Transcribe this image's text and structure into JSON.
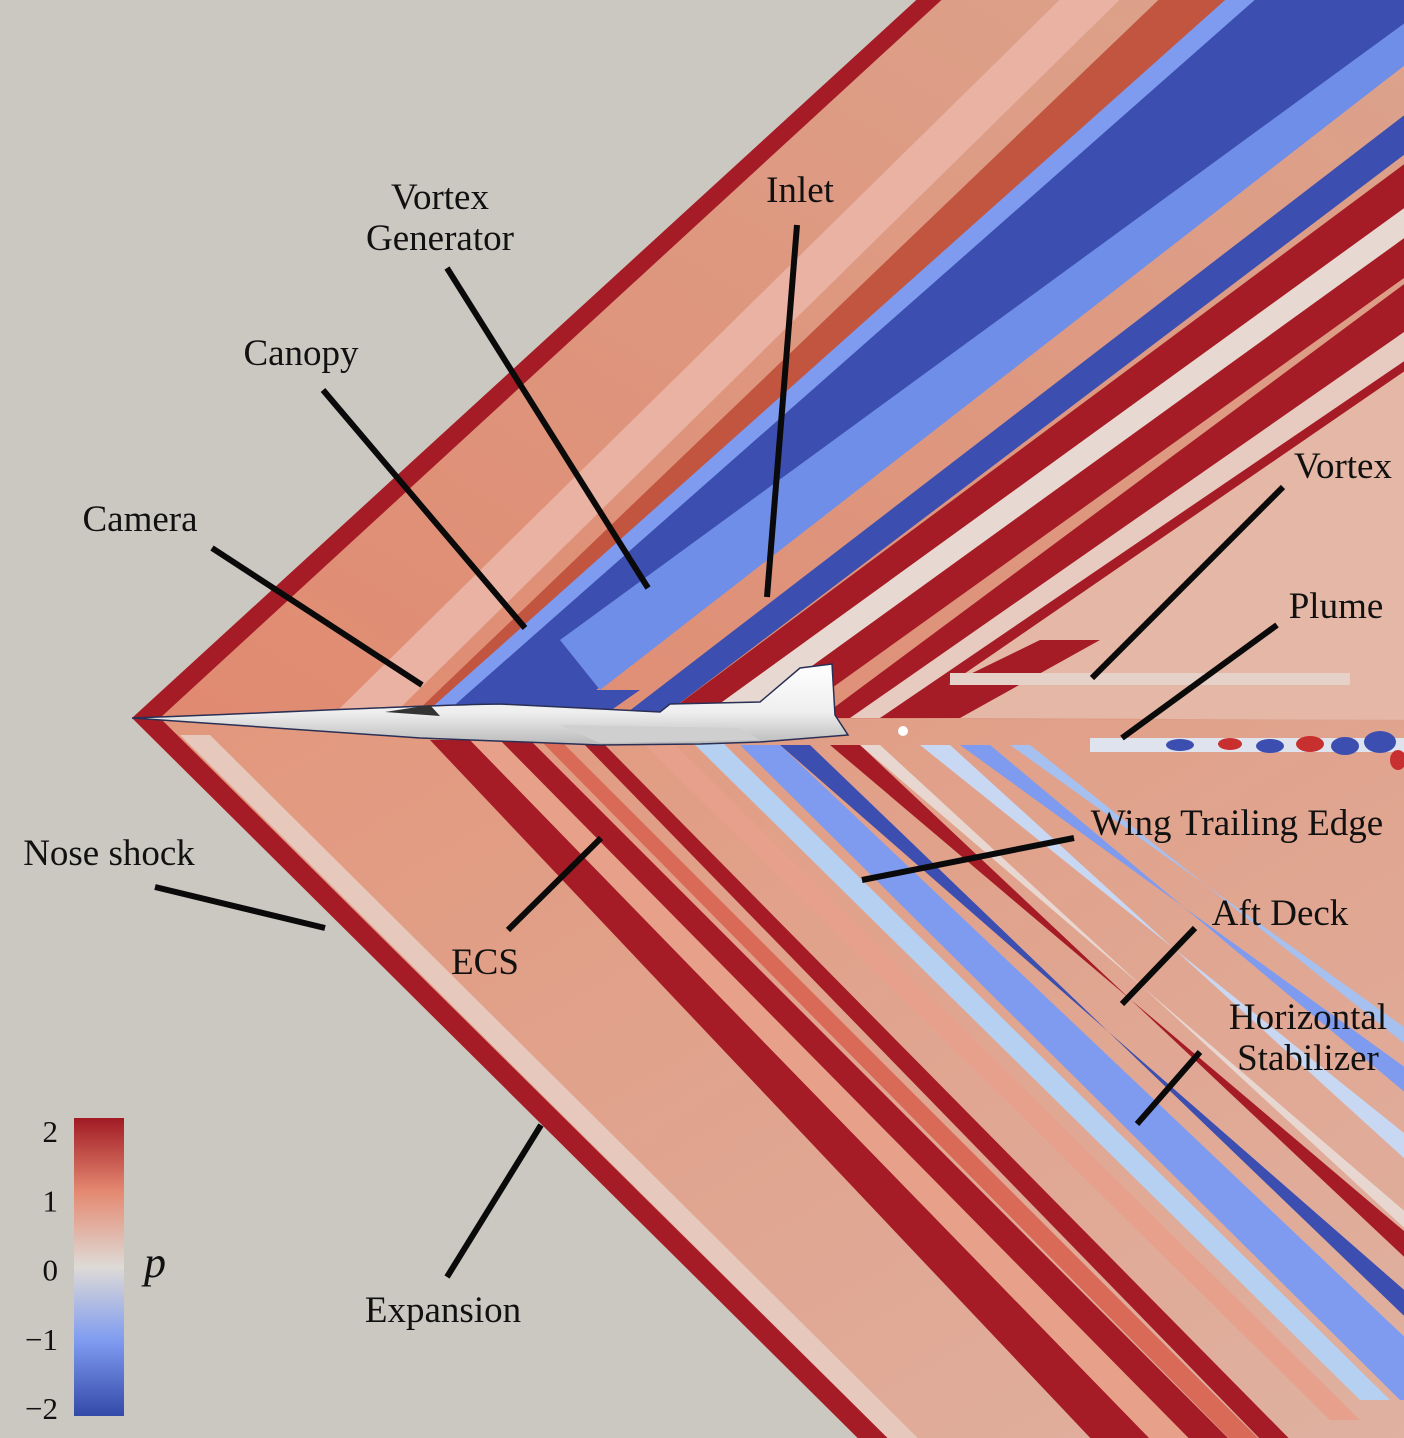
{
  "labels": {
    "vortex_generator_line1": "Vortex",
    "vortex_generator_line2": "Generator",
    "inlet": "Inlet",
    "canopy": "Canopy",
    "camera": "Camera",
    "vortex": "Vortex",
    "plume": "Plume",
    "wing_trailing_edge": "Wing Trailing Edge",
    "nose_shock": "Nose shock",
    "ecs": "ECS",
    "aft_deck": "Aft Deck",
    "horizontal_stabilizer_line1": "Horizontal",
    "horizontal_stabilizer_line2": "Stabilizer",
    "expansion": "Expansion"
  },
  "colorbar": {
    "symbol": "p",
    "ticks": [
      "2",
      "1",
      "0",
      "−1",
      "−2"
    ],
    "tick_values": [
      2,
      1,
      0,
      -1,
      -2
    ],
    "range": [
      -2,
      2
    ],
    "colors": {
      "max": "#a11a24",
      "high": "#e58a72",
      "zero": "#dedad6",
      "low": "#7e9bf0",
      "min": "#3449a8"
    }
  },
  "colors": {
    "background": "#cbc8c2",
    "aircraft": "#ffffff",
    "leader_line": "#0a0a0a"
  }
}
